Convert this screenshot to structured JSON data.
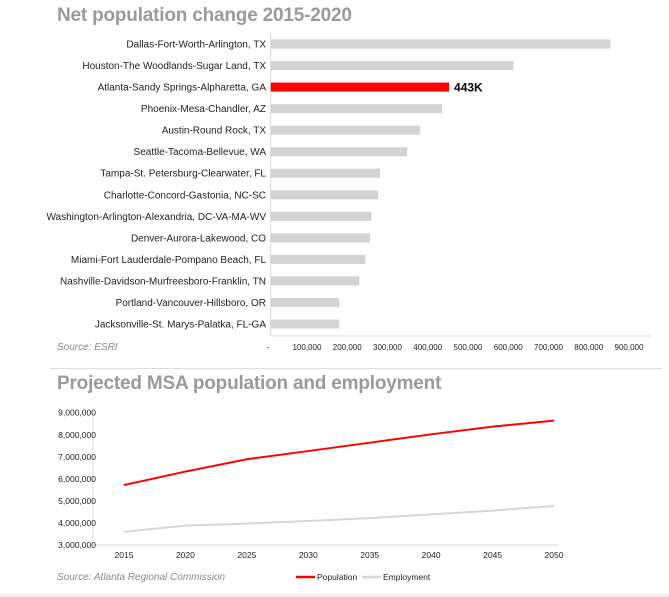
{
  "chart_data": [
    {
      "type": "bar",
      "orientation": "horizontal",
      "title": "Net population change 2015-2020",
      "source": "Source: ESRI",
      "categories": [
        "Dallas-Fort-Worth-Arlington, TX",
        "Houston-The Woodlands-Sugar Land, TX",
        "Atlanta-Sandy Springs-Alpharetta, GA",
        "Phoenix-Mesa-Chandler, AZ",
        "Austin-Round Rock, TX",
        "Seattle-Tacoma-Bellevue, WA",
        "Tampa-St. Petersburg-Clearwater, FL",
        "Charlotte-Concord-Gastonia, NC-SC",
        "Washington-Arlington-Alexandria, DC-VA-MA-WV",
        "Denver-Aurora-Lakewood, CO",
        "Miami-Fort Lauderdale-Pompano Beach, FL",
        "Nashville-Davidson-Murfreesboro-Franklin, TN",
        "Portland-Vancouver-Hillsboro, OR",
        "Jacksonville-St. Marys-Palatka, FL-GA"
      ],
      "values": [
        844000,
        603000,
        443000,
        426000,
        371000,
        339000,
        272000,
        267000,
        250000,
        247000,
        235000,
        220000,
        170000,
        170000
      ],
      "highlight_index": 2,
      "highlight_label": "443K",
      "xlim": [
        0,
        900000
      ],
      "xticks": [
        "-",
        "100,000",
        "200,000",
        "300,000",
        "400,000",
        "500,000",
        "600,000",
        "700,000",
        "800,000",
        "900,000"
      ],
      "grid": false,
      "colors": {
        "bar": "#d3d3d3",
        "highlight": "#ff0000"
      }
    },
    {
      "type": "line",
      "title": "Projected MSA population and employment",
      "source": "Source: Atlanta Regional Commission",
      "x": [
        "2015",
        "2020",
        "2025",
        "2030",
        "2035",
        "2040",
        "2045",
        "2050"
      ],
      "ylim": [
        3000000,
        9000000
      ],
      "yticks": [
        "3,000,000",
        "4,000,000",
        "5,000,000",
        "6,000,000",
        "7,000,000",
        "8,000,000",
        "9,000,000"
      ],
      "series": [
        {
          "name": "Population",
          "color": "#ff0000",
          "values": [
            5720000,
            6330000,
            6890000,
            7260000,
            7640000,
            8020000,
            8370000,
            8640000
          ]
        },
        {
          "name": "Employment",
          "color": "#d6d6d6",
          "values": [
            3600000,
            3880000,
            3970000,
            4090000,
            4220000,
            4390000,
            4560000,
            4770000
          ]
        }
      ],
      "legend": "bottom",
      "grid": false
    }
  ]
}
